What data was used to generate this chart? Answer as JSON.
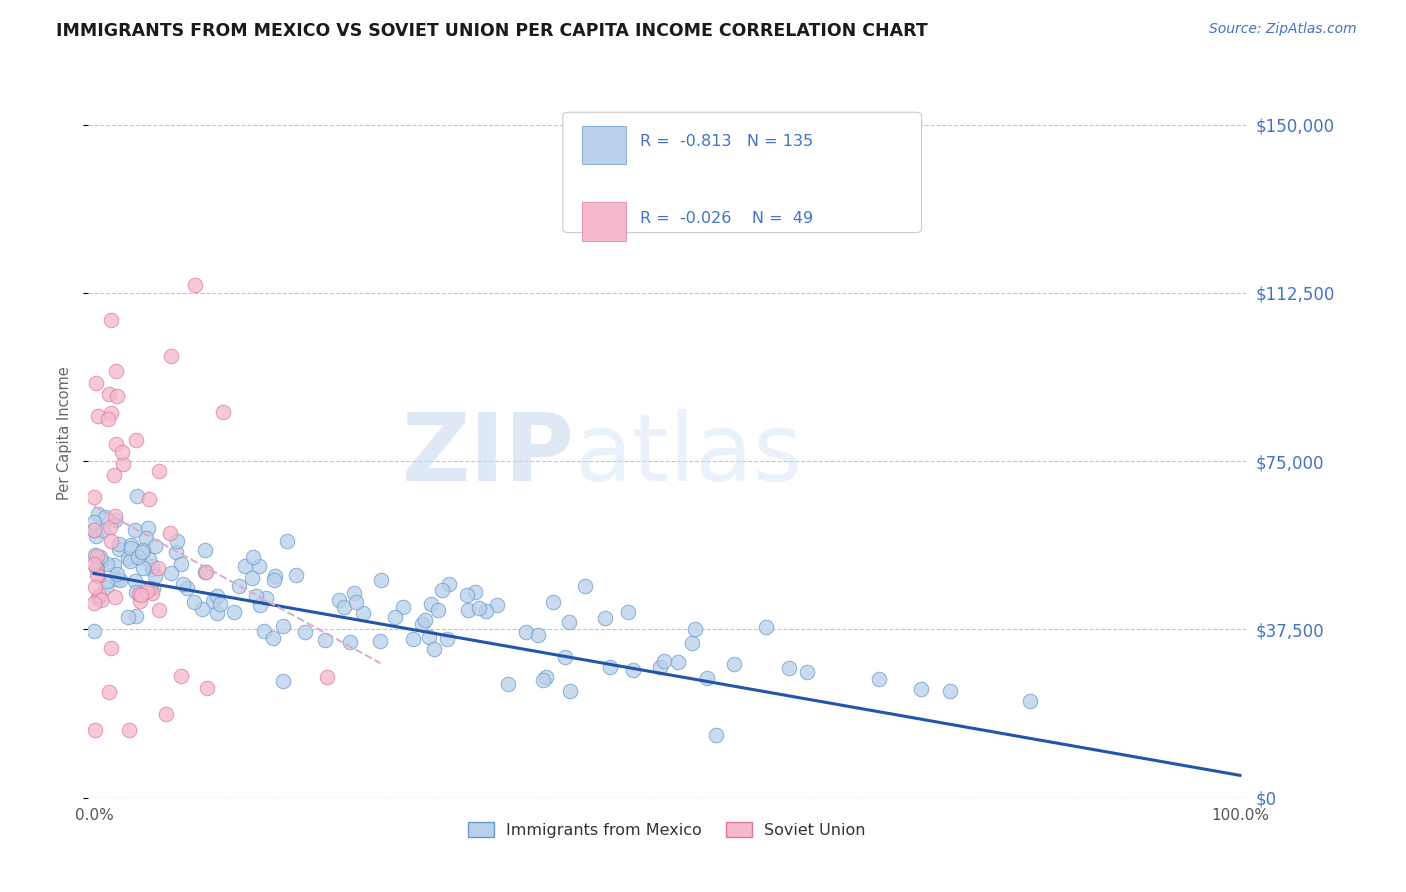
{
  "title": "IMMIGRANTS FROM MEXICO VS SOVIET UNION PER CAPITA INCOME CORRELATION CHART",
  "source": "Source: ZipAtlas.com",
  "ylabel": "Per Capita Income",
  "watermark_zip": "ZIP",
  "watermark_atlas": "atlas",
  "xlim": [
    -0.005,
    1.005
  ],
  "ylim": [
    0,
    162500
  ],
  "yticks": [
    0,
    37500,
    75000,
    112500,
    150000
  ],
  "ytick_labels": [
    "$0",
    "$37,500",
    "$75,000",
    "$112,500",
    "$150,000"
  ],
  "xtick_labels_left": "0.0%",
  "xtick_labels_right": "100.0%",
  "title_color": "#1a1a1a",
  "axis_label_color": "#4472c4",
  "grid_color": "#c0c0c0",
  "background_color": "#ffffff",
  "mexico_color": "#b8d0ea",
  "soviet_color": "#f5b8cc",
  "mexico_edge": "#6699cc",
  "soviet_edge": "#dd7799",
  "trend_mexico_color": "#2255aa",
  "trend_soviet_color": "#ddaacc",
  "mexico_R": "-0.813",
  "mexico_N": "135",
  "soviet_R": "-0.026",
  "soviet_N": "49",
  "legend_label_mexico": "Immigrants from Mexico",
  "legend_label_soviet": "Soviet Union",
  "mexico_trend_x0": 0.0,
  "mexico_trend_x1": 1.0,
  "mexico_trend_y0": 50000,
  "mexico_trend_y1": 5000,
  "soviet_trend_x0": 0.0,
  "soviet_trend_x1": 0.25,
  "soviet_trend_y0": 65000,
  "soviet_trend_y1": 30000
}
